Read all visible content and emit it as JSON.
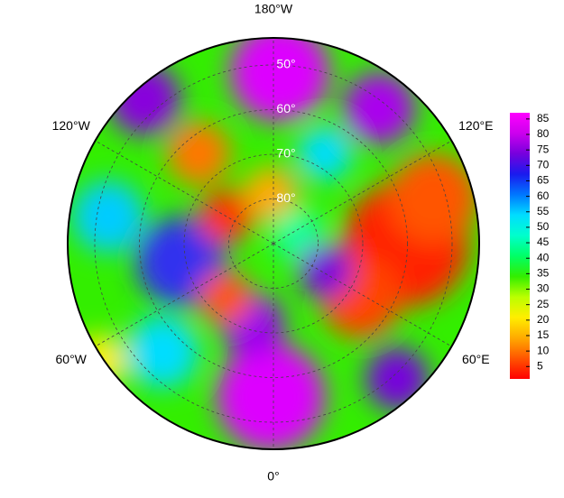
{
  "chart_data": {
    "type": "polar-map",
    "lon_ticks": [
      {
        "value": -180,
        "label": "180°W"
      },
      {
        "value": -120,
        "label": "120°W"
      },
      {
        "value": -60,
        "label": "60°W"
      },
      {
        "value": 0,
        "label": "0°"
      },
      {
        "value": 60,
        "label": "60°E"
      },
      {
        "value": 120,
        "label": "120°E"
      }
    ],
    "lat_ticks": [
      {
        "value": 50,
        "label": "50°"
      },
      {
        "value": 60,
        "label": "60°"
      },
      {
        "value": 70,
        "label": "70°"
      },
      {
        "value": 80,
        "label": "80°"
      }
    ],
    "colorbar": {
      "clim": [
        1,
        87
      ],
      "ticks": [
        5,
        10,
        15,
        20,
        25,
        30,
        35,
        40,
        45,
        50,
        55,
        60,
        65,
        70,
        75,
        80,
        85
      ],
      "colormap": [
        "#ff0000",
        "#ff5500",
        "#ffaa00",
        "#ffee00",
        "#bbff00",
        "#33ee00",
        "#00ff66",
        "#00ffcc",
        "#00ddff",
        "#0077ff",
        "#1a1aee",
        "#7700dd",
        "#cc00ee",
        "#ff00ff"
      ]
    }
  }
}
